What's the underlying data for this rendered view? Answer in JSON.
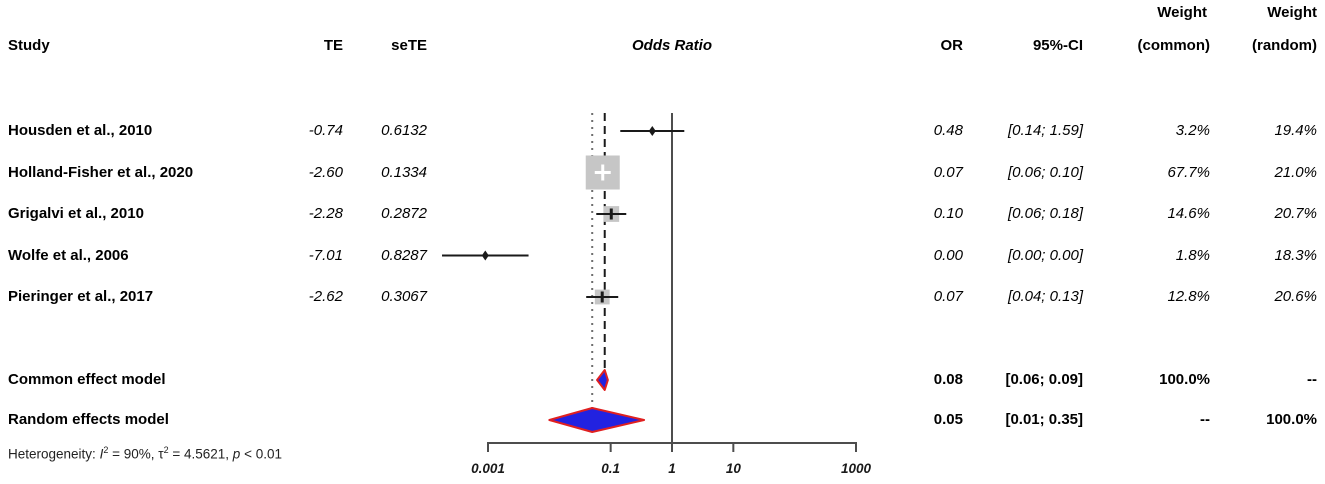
{
  "header": {
    "study": "Study",
    "te": "TE",
    "sete": "seTE",
    "plot_title": "Odds Ratio",
    "or": "OR",
    "ci": "95%-CI",
    "weight_top_common": "Weight",
    "weight_top_random": "Weight",
    "weight_common": "(common)",
    "weight_random": "(random)"
  },
  "studies": [
    {
      "name": "Housden et al., 2010",
      "te": "-0.74",
      "sete": "0.6132",
      "or": "0.48",
      "ci": "[0.14; 1.59]",
      "w_common": "3.2%",
      "w_random": "19.4%"
    },
    {
      "name": "Holland-Fisher et al., 2020",
      "te": "-2.60",
      "sete": "0.1334",
      "or": "0.07",
      "ci": "[0.06; 0.10]",
      "w_common": "67.7%",
      "w_random": "21.0%"
    },
    {
      "name": "Grigalvi et al., 2010",
      "te": "-2.28",
      "sete": "0.2872",
      "or": "0.10",
      "ci": "[0.06; 0.18]",
      "w_common": "14.6%",
      "w_random": "20.7%"
    },
    {
      "name": "Wolfe et al., 2006",
      "te": "-7.01",
      "sete": "0.8287",
      "or": "0.00",
      "ci": "[0.00; 0.00]",
      "w_common": "1.8%",
      "w_random": "18.3%"
    },
    {
      "name": "Pieringer et al., 2017",
      "te": "-2.62",
      "sete": "0.3067",
      "or": "0.07",
      "ci": "[0.04; 0.13]",
      "w_common": "12.8%",
      "w_random": "20.6%"
    }
  ],
  "models": [
    {
      "name": "Common effect model",
      "or": "0.08",
      "ci": "[0.06; 0.09]",
      "w_common": "100.0%",
      "w_random": "--"
    },
    {
      "name": "Random effects model",
      "or": "0.05",
      "ci": "[0.01; 0.35]",
      "w_common": "--",
      "w_random": "100.0%"
    }
  ],
  "heterogeneity": {
    "label": "Heterogeneity: ",
    "i_sym": "I",
    "i_sup": "2",
    "i_rest": " = 90%, τ",
    "tau_sup": "2",
    "tau_rest": " = 4.5621, ",
    "p_sym": "p",
    "p_rest": " < 0.01"
  },
  "chart_data": {
    "type": "forest",
    "title": "Odds Ratio",
    "x_scale": "log10",
    "x_ticks": [
      0.001,
      0.1,
      1,
      10,
      1000
    ],
    "x_tick_labels": [
      "0.001",
      "0.1",
      "1",
      "10",
      "1000"
    ],
    "reference_line": 1,
    "studies": [
      {
        "name": "Housden et al., 2010",
        "te": -0.74,
        "sete": 0.6132,
        "or": 0.48,
        "ci_lo": 0.14,
        "ci_hi": 1.59,
        "weight_common_pct": 3.2,
        "weight_random_pct": 19.4
      },
      {
        "name": "Holland-Fisher et al., 2020",
        "te": -2.6,
        "sete": 0.1334,
        "or": 0.07,
        "ci_lo": 0.06,
        "ci_hi": 0.1,
        "weight_common_pct": 67.7,
        "weight_random_pct": 21.0
      },
      {
        "name": "Grigalvi et al., 2010",
        "te": -2.28,
        "sete": 0.2872,
        "or": 0.1,
        "ci_lo": 0.06,
        "ci_hi": 0.18,
        "weight_common_pct": 14.6,
        "weight_random_pct": 20.7
      },
      {
        "name": "Wolfe et al., 2006",
        "te": -7.01,
        "sete": 0.8287,
        "or": 0.0,
        "ci_lo": 0.0,
        "ci_hi": 0.0,
        "weight_common_pct": 1.8,
        "weight_random_pct": 18.3
      },
      {
        "name": "Pieringer et al., 2017",
        "te": -2.62,
        "sete": 0.3067,
        "or": 0.07,
        "ci_lo": 0.04,
        "ci_hi": 0.13,
        "weight_common_pct": 12.8,
        "weight_random_pct": 20.6
      }
    ],
    "models": [
      {
        "name": "Common effect model",
        "est": 0.08,
        "lo": 0.06,
        "hi": 0.09,
        "line_style": "dashed"
      },
      {
        "name": "Random effects model",
        "est": 0.05,
        "lo": 0.01,
        "hi": 0.35,
        "line_style": "dotted"
      }
    ],
    "heterogeneity": {
      "I2_pct": 90,
      "tau2": 4.5621,
      "p": "< 0.01"
    },
    "colors": {
      "square": "#c6c6c6",
      "square_plus": "#ffffff",
      "ci_line": "#1a1a1a",
      "diamond_fill": "#2222e0",
      "diamond_border": "#e02020",
      "axis": "#4d4d4d",
      "ref_line": "#4d4d4d",
      "dashed_line": "#1a1a1a",
      "dotted_line": "#6e6e6e"
    }
  }
}
